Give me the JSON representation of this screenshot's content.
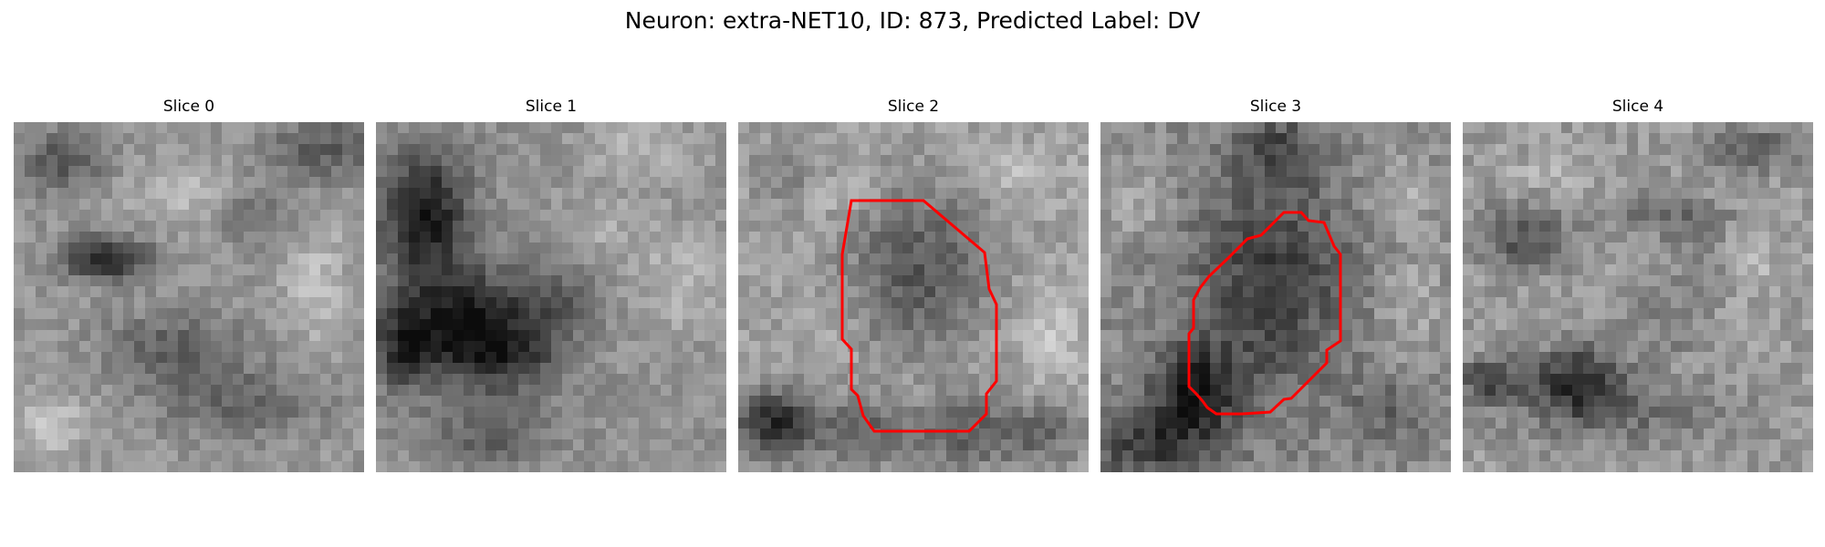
{
  "figure": {
    "title": "Neuron: extra-NET10, ID: 873, Predicted Label: DV"
  },
  "panels": [
    {
      "title": "Slice 0",
      "has_contour": false
    },
    {
      "title": "Slice 1",
      "has_contour": false
    },
    {
      "title": "Slice 2",
      "has_contour": true
    },
    {
      "title": "Slice 3",
      "has_contour": true
    },
    {
      "title": "Slice 4",
      "has_contour": false
    }
  ],
  "style": {
    "contour_color": "#ff0000",
    "colormap": "grayscale"
  }
}
